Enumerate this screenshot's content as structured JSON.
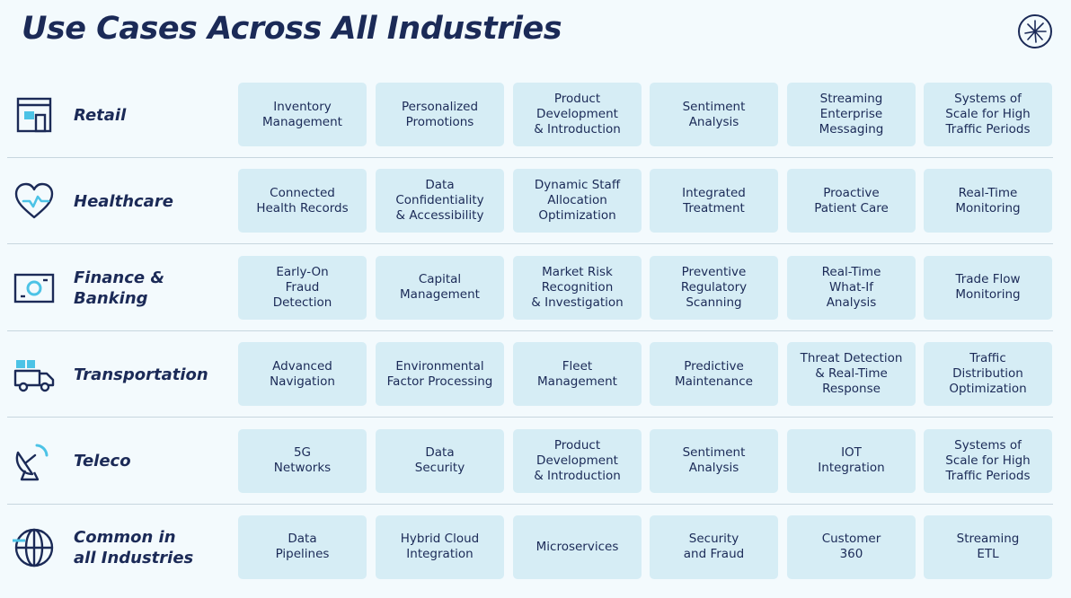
{
  "title": "Use Cases Across All Industries",
  "logo": {
    "icon": "starburst-logo-icon"
  },
  "industries": [
    {
      "label": "Retail",
      "icon": "storefront-icon",
      "use_cases": [
        "Inventory\nManagement",
        "Personalized\nPromotions",
        "Product\nDevelopment\n& Introduction",
        "Sentiment\nAnalysis",
        "Streaming\nEnterprise\nMessaging",
        "Systems of\nScale for High\nTraffic Periods"
      ]
    },
    {
      "label": "Healthcare",
      "icon": "heart-pulse-icon",
      "use_cases": [
        "Connected\nHealth Records",
        "Data\nConfidentiality\n& Accessibility",
        "Dynamic Staff\nAllocation\nOptimization",
        "Integrated\nTreatment",
        "Proactive\nPatient Care",
        "Real-Time\nMonitoring"
      ]
    },
    {
      "label": "Finance &\nBanking",
      "icon": "banknote-icon",
      "use_cases": [
        "Early-On\nFraud\nDetection",
        "Capital\nManagement",
        "Market Risk\nRecognition\n& Investigation",
        "Preventive\nRegulatory\nScanning",
        "Real-Time\nWhat-If\nAnalysis",
        "Trade Flow\nMonitoring"
      ]
    },
    {
      "label": "Transportation",
      "icon": "truck-icon",
      "use_cases": [
        "Advanced\nNavigation",
        "Environmental\nFactor Processing",
        "Fleet\nManagement",
        "Predictive\nMaintenance",
        "Threat Detection\n& Real-Time\nResponse",
        "Traffic\nDistribution\nOptimization"
      ]
    },
    {
      "label": "Teleco",
      "icon": "satellite-dish-icon",
      "use_cases": [
        "5G\nNetworks",
        "Data\nSecurity",
        "Product\nDevelopment\n& Introduction",
        "Sentiment\nAnalysis",
        "IOT\nIntegration",
        "Systems of\nScale for High\nTraffic Periods"
      ]
    },
    {
      "label": "Common in\nall Industries",
      "icon": "globe-icon",
      "use_cases": [
        "Data\nPipelines",
        "Hybrid Cloud\nIntegration",
        "Microservices",
        "Security\nand Fraud",
        "Customer\n360",
        "Streaming\nETL"
      ]
    }
  ]
}
